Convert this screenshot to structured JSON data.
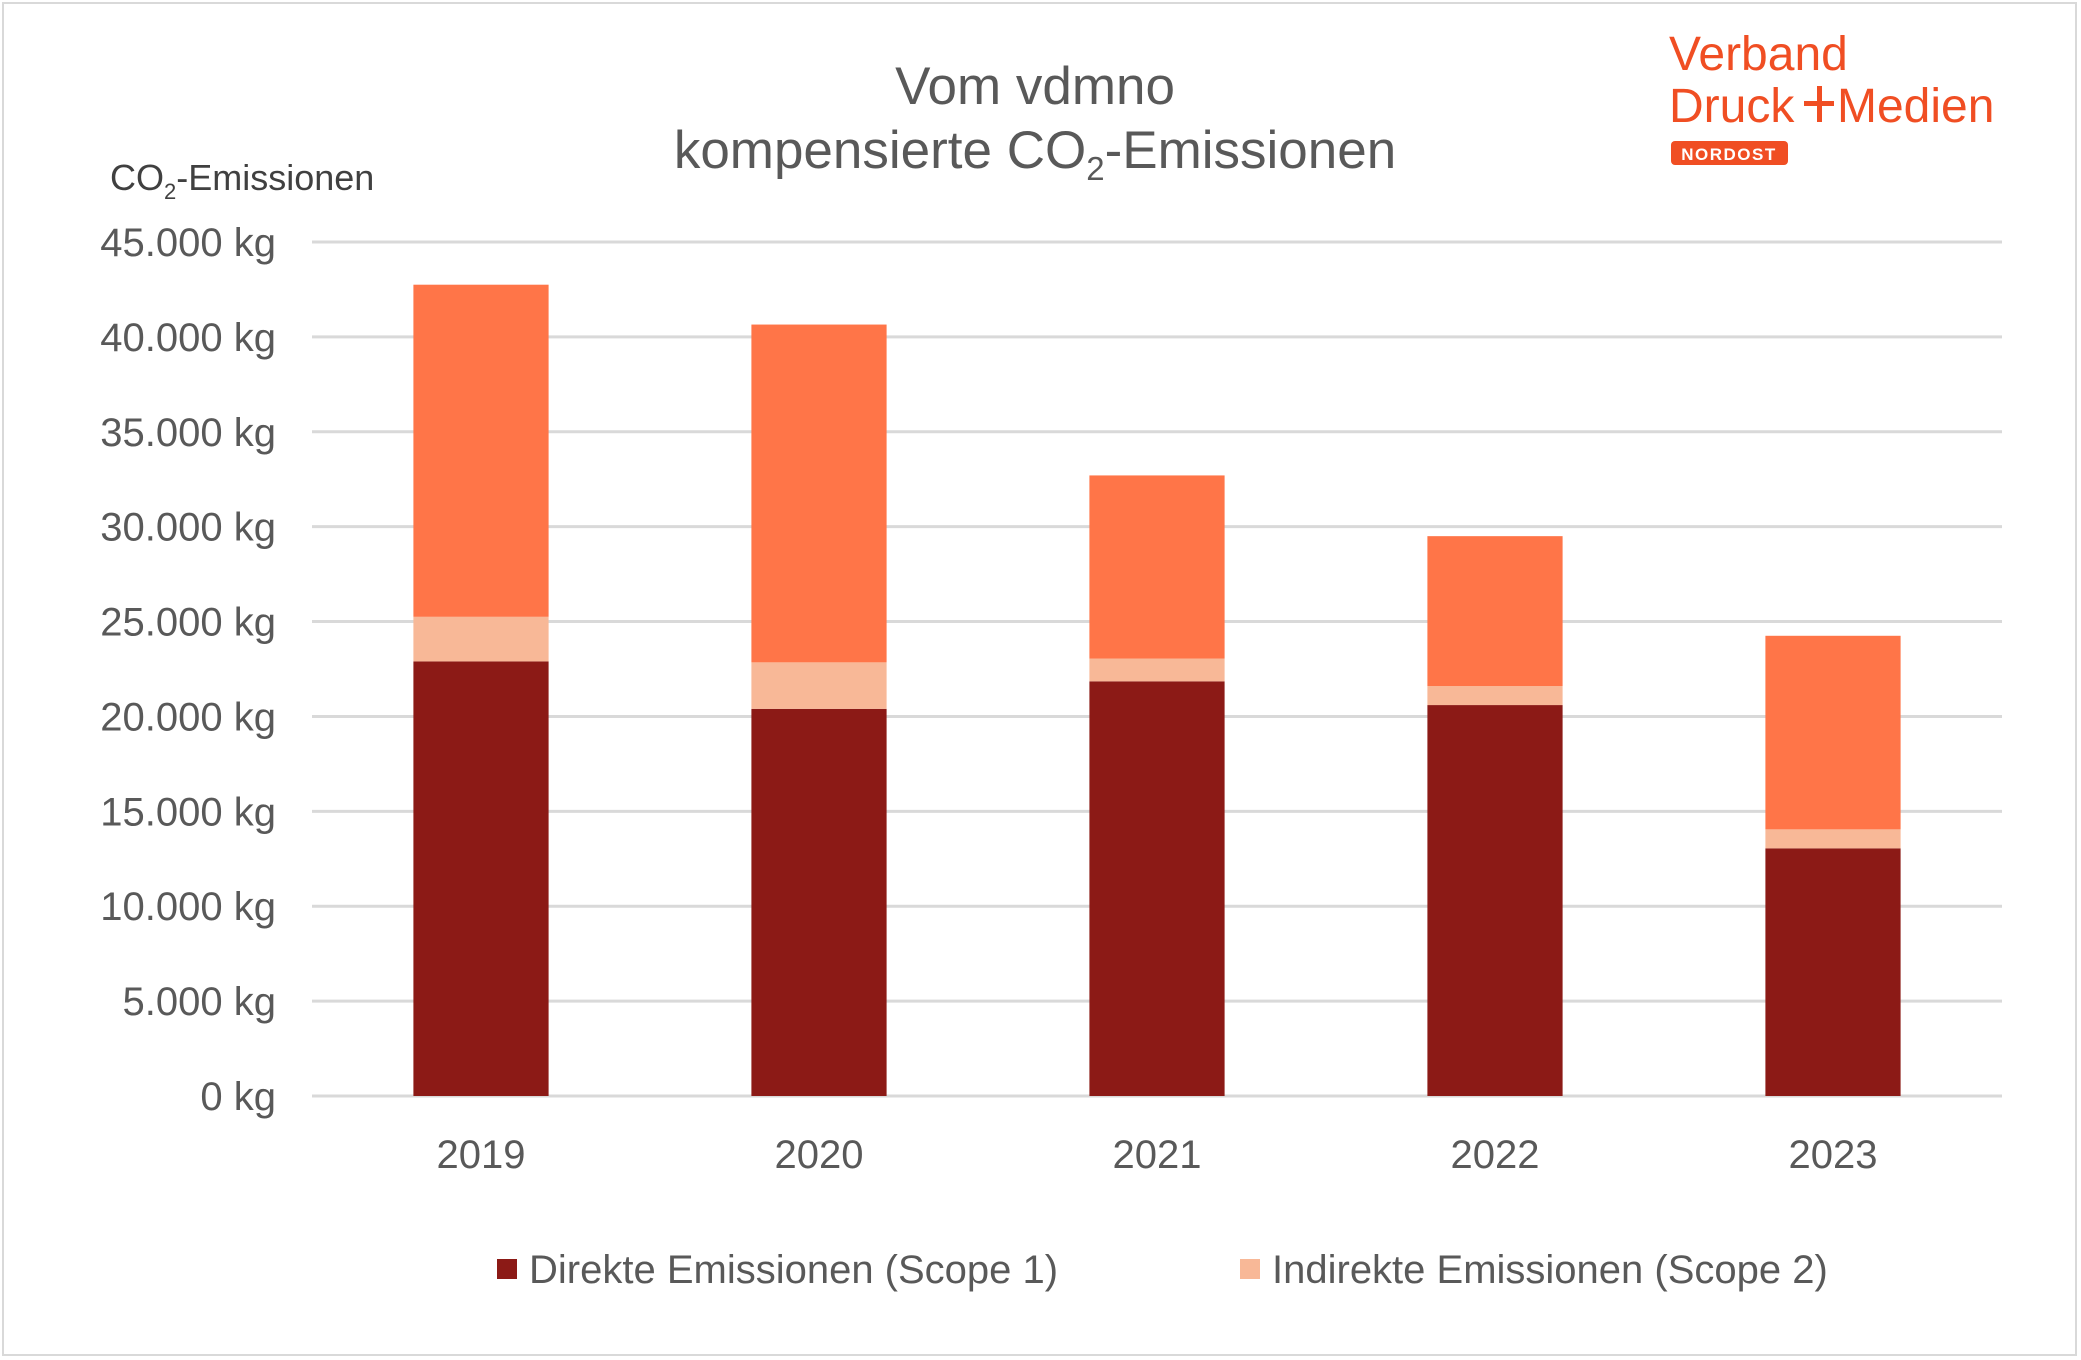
{
  "chart_data": {
    "type": "bar",
    "stacked": true,
    "title": {
      "line1": "Vom vdmno",
      "line2_prefix": "kompensierte CO",
      "line2_subscript": "2",
      "line2_suffix": "-Emissionen"
    },
    "ylabel": {
      "prefix": "CO",
      "subscript": "2",
      "suffix": "-Emissionen"
    },
    "xlabel": "",
    "unit": "kg",
    "ylim": [
      0,
      45000
    ],
    "ytick_step": 5000,
    "yticks": [
      "0 kg",
      "5.000 kg",
      "10.000 kg",
      "15.000 kg",
      "20.000 kg",
      "25.000 kg",
      "30.000 kg",
      "35.000 kg",
      "40.000 kg",
      "45.000 kg"
    ],
    "categories": [
      "2019",
      "2020",
      "2021",
      "2022",
      "2023"
    ],
    "grid": true,
    "legend_position": "bottom",
    "series": [
      {
        "name": "Direkte Emissionen (Scope 1)",
        "color": "#8c1a16",
        "values": [
          22900,
          20400,
          21850,
          20600,
          13050
        ]
      },
      {
        "name": "Indirekte Emissionen (Scope 2)",
        "color": "#f8b897",
        "values": [
          2350,
          2450,
          1200,
          1000,
          1000
        ]
      },
      {
        "name": "",
        "color": "#ff7548",
        "values": [
          17500,
          17800,
          9650,
          7900,
          10200
        ],
        "in_legend": false
      }
    ]
  },
  "logo": {
    "line1": "Verband",
    "line2_left": "Druck",
    "line2_right": "Medien",
    "badge": "NORDOST",
    "color": "#f04e23"
  }
}
